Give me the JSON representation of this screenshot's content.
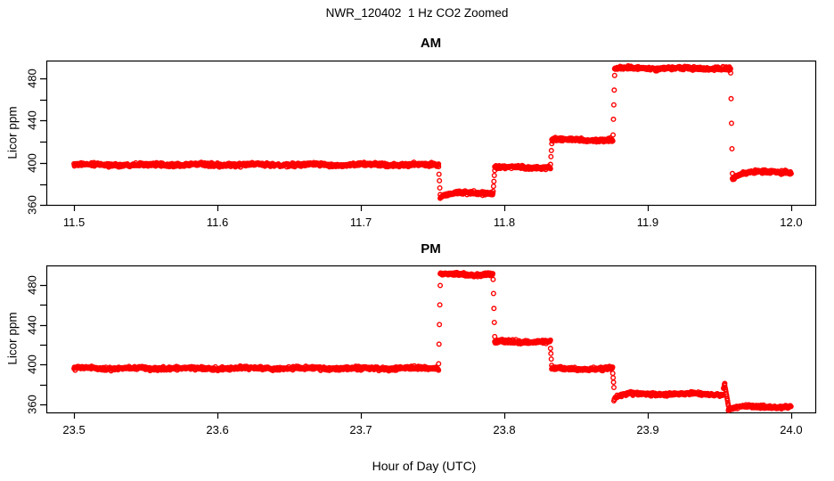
{
  "figure": {
    "title": "NWR_120402  1 Hz CO2 Zoomed",
    "xlabel": "Hour of Day (UTC)",
    "background": "#ffffff",
    "axis_color": "#000000",
    "point_color": "#ff0000"
  },
  "chart_data": [
    {
      "type": "scatter",
      "panel": "am",
      "title": "AM",
      "ylabel": "Licor ppm",
      "marker": "open-circle",
      "sample_interval_s": 1,
      "xlim": [
        11.4807,
        12.0168
      ],
      "ylim": [
        360.4,
        496.8
      ],
      "xticks": [
        11.5,
        11.6,
        11.7,
        11.8,
        11.9,
        12.0
      ],
      "yticks": [
        360,
        380,
        400,
        420,
        440,
        460,
        480
      ],
      "ytick_labeled": [
        360,
        400,
        440,
        480
      ],
      "grid": false,
      "segments": [
        {
          "type": "flat",
          "t0": 11.5,
          "t1": 11.7542,
          "value": 398.3,
          "noise": 0.8
        },
        {
          "type": "ramp",
          "t0": 11.7542,
          "t1": 11.7553,
          "v0": 396.0,
          "v1": 370.0
        },
        {
          "type": "settle",
          "t0": 11.7553,
          "t1": 11.764,
          "value": 371.4,
          "amp": -4.5,
          "tau": 12,
          "noise": 0.7
        },
        {
          "type": "flat",
          "t0": 11.764,
          "t1": 11.7922,
          "value": 371.4,
          "noise": 0.8
        },
        {
          "type": "ramp",
          "t0": 11.7922,
          "t1": 11.7933,
          "v0": 373.0,
          "v1": 393.0
        },
        {
          "type": "flat",
          "t0": 11.7933,
          "t1": 11.8322,
          "value": 395.8,
          "noise": 0.8
        },
        {
          "type": "ramp",
          "t0": 11.8322,
          "t1": 11.8331,
          "v0": 399.0,
          "v1": 418.0
        },
        {
          "type": "flat",
          "t0": 11.8331,
          "t1": 11.8758,
          "value": 421.8,
          "noise": 0.8
        },
        {
          "type": "ramp",
          "t0": 11.8758,
          "t1": 11.8769,
          "v0": 427.0,
          "v1": 483.0
        },
        {
          "type": "flat",
          "t0": 11.8769,
          "t1": 11.9578,
          "value": 489.4,
          "noise": 0.8
        },
        {
          "type": "ramp",
          "t0": 11.9578,
          "t1": 11.959,
          "v0": 485.0,
          "v1": 390.0
        },
        {
          "type": "settle",
          "t0": 11.959,
          "t1": 11.97,
          "value": 391.4,
          "amp": -7.0,
          "tau": 18,
          "noise": 0.7
        },
        {
          "type": "flat",
          "t0": 11.97,
          "t1": 12.0,
          "value": 391.4,
          "noise": 0.8
        }
      ]
    },
    {
      "type": "scatter",
      "panel": "pm",
      "title": "PM",
      "ylabel": "Licor ppm",
      "marker": "open-circle",
      "sample_interval_s": 1,
      "xlim": [
        23.4807,
        24.0168
      ],
      "ylim": [
        351.9,
        499.7
      ],
      "xticks": [
        23.5,
        23.6,
        23.7,
        23.8,
        23.9,
        24.0
      ],
      "yticks": [
        360,
        380,
        400,
        420,
        440,
        460,
        480
      ],
      "ytick_labeled": [
        360,
        400,
        440,
        480
      ],
      "grid": false,
      "segments": [
        {
          "type": "flat",
          "t0": 23.5,
          "t1": 23.7542,
          "value": 396.2,
          "noise": 0.8
        },
        {
          "type": "ramp",
          "t0": 23.7542,
          "t1": 23.7553,
          "v0": 401.0,
          "v1": 480.0
        },
        {
          "type": "flat",
          "t0": 23.7553,
          "t1": 23.7922,
          "value": 490.7,
          "noise": 0.8
        },
        {
          "type": "ramp",
          "t0": 23.7922,
          "t1": 23.7933,
          "v0": 486.0,
          "v1": 428.0
        },
        {
          "type": "flat",
          "t0": 23.7933,
          "t1": 23.8322,
          "value": 422.9,
          "noise": 0.8
        },
        {
          "type": "ramp",
          "t0": 23.8322,
          "t1": 23.833,
          "v0": 416.0,
          "v1": 400.0
        },
        {
          "type": "flat",
          "t0": 23.833,
          "t1": 23.8756,
          "value": 395.7,
          "noise": 0.8
        },
        {
          "type": "ramp",
          "t0": 23.8756,
          "t1": 23.8764,
          "v0": 391.0,
          "v1": 377.0
        },
        {
          "type": "settle",
          "t0": 23.8764,
          "t1": 23.886,
          "value": 370.4,
          "amp": -5.5,
          "tau": 10,
          "noise": 0.7
        },
        {
          "type": "flat",
          "t0": 23.886,
          "t1": 23.9528,
          "value": 370.4,
          "noise": 0.8
        },
        {
          "type": "ramp",
          "t0": 23.9528,
          "t1": 23.9537,
          "v0": 376.0,
          "v1": 381.0
        },
        {
          "type": "ramp",
          "t0": 23.9537,
          "t1": 23.9562,
          "v0": 379.0,
          "v1": 359.0
        },
        {
          "type": "settle",
          "t0": 23.9562,
          "t1": 23.966,
          "value": 357.4,
          "amp": -2.5,
          "tau": 12,
          "noise": 0.7
        },
        {
          "type": "flat",
          "t0": 23.966,
          "t1": 24.0,
          "value": 357.4,
          "noise": 0.8
        }
      ]
    }
  ]
}
